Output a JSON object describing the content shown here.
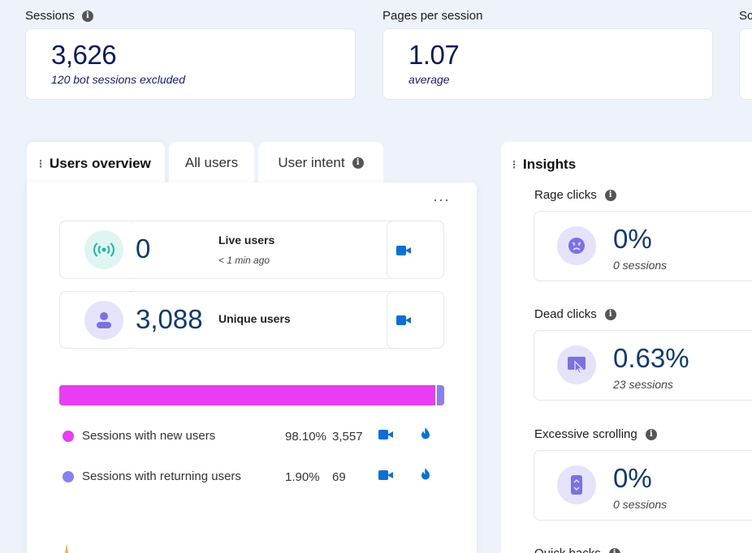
{
  "stats": [
    {
      "label": "Sessions",
      "value": "3,626",
      "sub": "120 bot sessions excluded"
    },
    {
      "label": "Pages per session",
      "value": "1.07",
      "sub": "average"
    },
    {
      "label": "Sc"
    }
  ],
  "tabs": [
    {
      "label": "Users overview"
    },
    {
      "label": "All users"
    },
    {
      "label": "User intent"
    }
  ],
  "users": {
    "more": "···",
    "live": {
      "value": "0",
      "label": "Live users",
      "sub": "< 1 min ago"
    },
    "unique": {
      "value": "3,088",
      "label": "Unique users"
    }
  },
  "sessions_split": {
    "new_fraction": 0.981,
    "rows": [
      {
        "label": "Sessions with new users",
        "pct": "98.10%",
        "count": "3,557",
        "color": "#e93cf4"
      },
      {
        "label": "Sessions with returning users",
        "pct": "1.90%",
        "count": "69",
        "color": "#8b7ef0"
      }
    ]
  },
  "insights": {
    "title": "Insights",
    "items": [
      {
        "label": "Rage clicks",
        "value": "0%",
        "sub": "0 sessions",
        "icon": "angry-face-icon"
      },
      {
        "label": "Dead clicks",
        "value": "0.63%",
        "sub": "23 sessions",
        "icon": "dead-click-icon"
      },
      {
        "label": "Excessive scrolling",
        "value": "0%",
        "sub": "0 sessions",
        "icon": "scroll-icon"
      },
      {
        "label": "Quick backs"
      }
    ]
  },
  "colors": {
    "accent": "#0b6fd6",
    "new_users": "#e93cf4",
    "returning_users": "#8b7ef0",
    "live": "#19b5a8"
  }
}
